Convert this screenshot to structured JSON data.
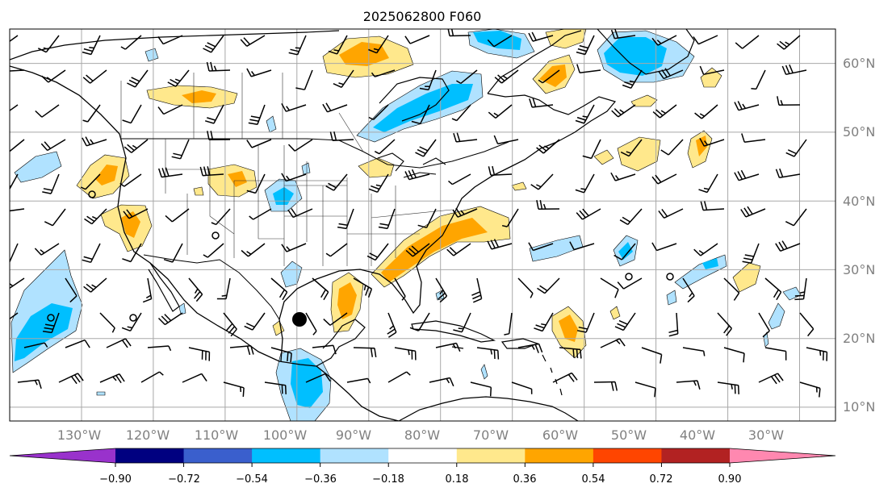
{
  "title": "2025062800 F060",
  "map": {
    "longitude_ticks": [
      "130°W",
      "120°W",
      "110°W",
      "100°W",
      "90°W",
      "80°W",
      "70°W",
      "60°W",
      "50°W",
      "40°W",
      "30°W"
    ],
    "latitude_ticks": [
      "60°N",
      "50°N",
      "40°N",
      "30°N",
      "20°N",
      "10°N"
    ],
    "lon_values": [
      -130,
      -120,
      -110,
      -100,
      -90,
      -80,
      -70,
      -60,
      -50,
      -40,
      -30
    ],
    "lat_values": [
      60,
      50,
      40,
      30,
      20,
      10
    ],
    "extent": {
      "lon": [
        -140,
        -25
      ],
      "lat": [
        8,
        65
      ]
    },
    "gridlines": true,
    "overlays": [
      "coastlines",
      "country-borders",
      "state-borders",
      "wind-barbs",
      "filled-contours"
    ]
  },
  "colorbar": {
    "levels": [
      "−0.90",
      "−0.72",
      "−0.54",
      "−0.36",
      "−0.18",
      "0.18",
      "0.36",
      "0.54",
      "0.72",
      "0.90"
    ],
    "colors": [
      "#9932cc",
      "#000080",
      "#3a5fcd",
      "#00bfff",
      "#b0e2ff",
      "#ffffff",
      "#ffe88c",
      "#ffa500",
      "#ff4500",
      "#b22222",
      "#ff88b0"
    ],
    "extend": "both",
    "orientation": "horizontal"
  },
  "markers": [
    {
      "name": "large-dot",
      "lon": -99,
      "lat": 22.5
    }
  ]
}
